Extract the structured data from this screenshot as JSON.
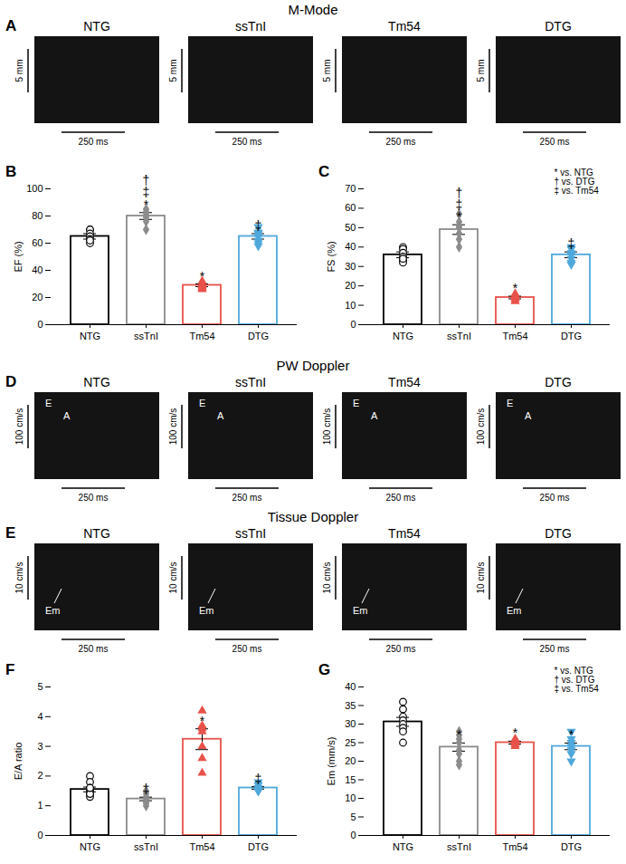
{
  "image_panels": [
    {
      "letter": "A",
      "title": "M-Mode",
      "scale_y": "5 mm",
      "scale_x": "250 ms",
      "panels": [
        "NTG",
        "ssTnI",
        "Tm54",
        "DTG"
      ]
    },
    {
      "letter": "D",
      "title": "PW Doppler",
      "scale_y": "100 cm/s",
      "scale_x": "250 ms",
      "panels": [
        "NTG",
        "ssTnI",
        "Tm54",
        "DTG"
      ],
      "peaks": [
        "E",
        "A"
      ]
    },
    {
      "letter": "E",
      "title": "Tissue Doppler",
      "scale_y": "10 cm/s",
      "scale_x": "250 ms",
      "panels": [
        "NTG",
        "ssTnI",
        "Tm54",
        "DTG"
      ],
      "peaks": [
        "Em"
      ]
    }
  ],
  "chart_data": [
    {
      "type": "bar",
      "letter": "B",
      "ylabel": "EF (%)",
      "categories": [
        "NTG",
        "ssTnI",
        "Tm54",
        "DTG"
      ],
      "means": [
        65,
        80,
        29,
        65
      ],
      "errors": [
        2,
        2.5,
        1,
        2
      ],
      "points": [
        [
          70,
          70,
          67,
          65,
          63,
          60,
          62
        ],
        [
          85,
          83,
          82,
          80,
          79,
          76,
          70
        ],
        [
          32,
          30,
          30,
          29,
          28,
          27,
          26
        ],
        [
          72,
          68,
          67,
          65,
          62,
          60,
          58
        ]
      ],
      "colors": [
        "#000000",
        "#8c8c8c",
        "#e8524a",
        "#4fa8dc"
      ],
      "markers": [
        "open circle",
        "diamond",
        "triangle",
        "inverted triangle"
      ],
      "ylim": [
        0,
        100
      ],
      "yticks": [
        0,
        20,
        40,
        60,
        80,
        100
      ],
      "significance": [
        [],
        [
          "†",
          "‡",
          "*"
        ],
        [
          "*"
        ],
        [
          "‡"
        ]
      ]
    },
    {
      "type": "bar",
      "letter": "C",
      "ylabel": "FS (%)",
      "categories": [
        "NTG",
        "ssTnI",
        "Tm54",
        "DTG"
      ],
      "means": [
        36,
        49,
        14,
        36
      ],
      "errors": [
        1.5,
        2.5,
        0.7,
        1.5
      ],
      "points": [
        [
          40,
          39,
          37,
          35,
          33,
          32,
          34
        ],
        [
          57,
          53,
          51,
          50,
          47,
          44,
          40
        ],
        [
          16,
          15,
          14,
          14,
          13,
          12
        ],
        [
          40,
          39,
          37,
          36,
          34,
          32,
          31
        ]
      ],
      "colors": [
        "#000000",
        "#8c8c8c",
        "#e8524a",
        "#4fa8dc"
      ],
      "markers": [
        "open circle",
        "diamond",
        "triangle",
        "inverted triangle"
      ],
      "ylim": [
        0,
        70
      ],
      "yticks": [
        0,
        10,
        20,
        30,
        40,
        50,
        60,
        70
      ],
      "significance": [
        [],
        [
          "†",
          "‡",
          "*"
        ],
        [
          "*"
        ],
        [
          "‡"
        ]
      ],
      "annotations": [
        "* vs. NTG",
        "† vs. DTG",
        "‡ vs. Tm54"
      ]
    },
    {
      "type": "bar",
      "letter": "F",
      "ylabel": "E/A ratio",
      "categories": [
        "NTG",
        "ssTnI",
        "Tm54",
        "DTG"
      ],
      "means": [
        1.55,
        1.23,
        3.24,
        1.6
      ],
      "errors": [
        0.08,
        0.06,
        0.35,
        0.04
      ],
      "points": [
        [
          2.0,
          1.8,
          1.6,
          1.5,
          1.4,
          1.3,
          1.4,
          1.6
        ],
        [
          1.5,
          1.4,
          1.3,
          1.2,
          1.1,
          1.1,
          1.0
        ],
        [
          4.2,
          3.7,
          3.6,
          3.5,
          3.0,
          2.6,
          2.1
        ],
        [
          1.8,
          1.7,
          1.6,
          1.6,
          1.5,
          1.5,
          1.5
        ]
      ],
      "colors": [
        "#000000",
        "#8c8c8c",
        "#e8524a",
        "#4fa8dc"
      ],
      "markers": [
        "open circle",
        "diamond",
        "triangle",
        "inverted triangle"
      ],
      "ylim": [
        0,
        5
      ],
      "yticks": [
        0,
        1,
        2,
        3,
        4,
        5
      ],
      "significance": [
        [],
        [
          "‡"
        ],
        [
          "*"
        ],
        [
          "‡"
        ]
      ]
    },
    {
      "type": "bar",
      "letter": "G",
      "ylabel": "Em (mm/s)",
      "categories": [
        "NTG",
        "ssTnI",
        "Tm54",
        "DTG"
      ],
      "means": [
        30.6,
        23.8,
        25,
        24
      ],
      "errors": [
        1.2,
        1.1,
        0.4,
        0.9
      ],
      "points": [
        [
          36,
          34,
          32,
          31,
          30,
          29,
          28,
          25
        ],
        [
          28,
          27,
          26,
          25,
          23,
          22,
          19,
          20
        ],
        [
          26,
          25.5,
          25,
          25,
          24.5,
          24
        ],
        [
          28,
          26,
          25,
          24,
          23,
          22,
          20
        ]
      ],
      "colors": [
        "#000000",
        "#8c8c8c",
        "#e8524a",
        "#4fa8dc"
      ],
      "markers": [
        "open circle",
        "diamond",
        "triangle",
        "inverted triangle"
      ],
      "ylim": [
        0,
        40
      ],
      "yticks": [
        0,
        5,
        10,
        15,
        20,
        25,
        30,
        35,
        40
      ],
      "significance": [
        [],
        [
          "*"
        ],
        [
          "*"
        ],
        [
          "*"
        ]
      ],
      "annotations": [
        "* vs. NTG",
        "† vs. DTG",
        "‡ vs. Tm54"
      ]
    }
  ]
}
